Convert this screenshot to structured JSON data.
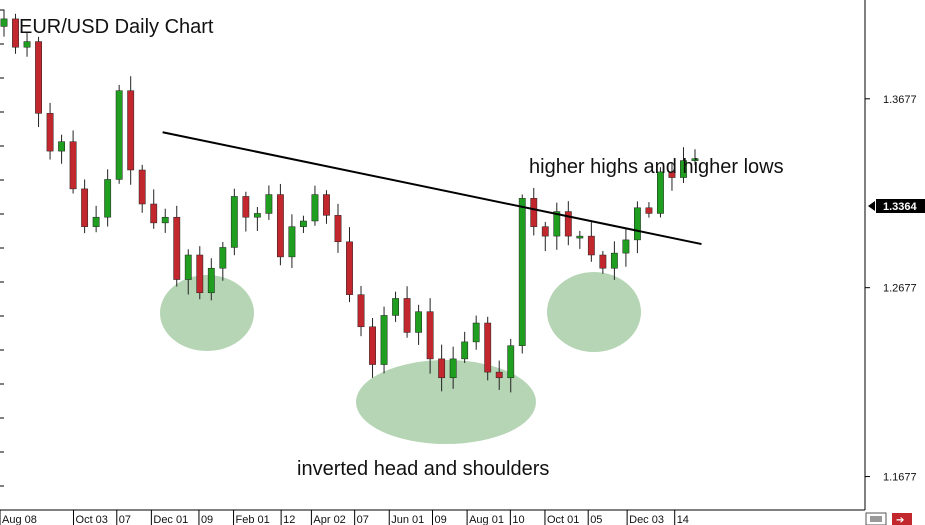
{
  "chart_data": {
    "type": "candlestick",
    "title": "EUR/USD Daily Chart",
    "ylim": [
      1.15,
      1.42
    ],
    "y_ticks": [
      "1.1677",
      "1.2677",
      "1.3677"
    ],
    "x_ticks": [
      "Aug 08",
      "Oct 03",
      "07",
      "Dec 01",
      "09",
      "Feb 01",
      "12",
      "Apr 02",
      "07",
      "Jun 01",
      "09",
      "Aug 01",
      "10",
      "Oct 01",
      "05",
      "Dec 03",
      "14"
    ],
    "current_price": "1.3364",
    "trendline": {
      "start": [
        0.188,
        1.35
      ],
      "end": [
        0.811,
        1.2908
      ]
    },
    "closes": [
      1.41,
      1.395,
      1.398,
      1.36,
      1.34,
      1.345,
      1.32,
      1.3,
      1.305,
      1.325,
      1.372,
      1.33,
      1.312,
      1.302,
      1.305,
      1.272,
      1.285,
      1.265,
      1.278,
      1.289,
      1.316,
      1.305,
      1.307,
      1.317,
      1.284,
      1.3,
      1.303,
      1.317,
      1.306,
      1.292,
      1.264,
      1.247,
      1.227,
      1.253,
      1.262,
      1.244,
      1.255,
      1.23,
      1.22,
      1.23,
      1.239,
      1.249,
      1.223,
      1.22,
      1.237,
      1.315,
      1.3,
      1.295,
      1.308,
      1.295,
      1.295,
      1.285,
      1.278,
      1.286,
      1.293,
      1.31,
      1.307,
      1.329,
      1.326,
      1.335,
      1.336
    ],
    "annotations": [
      "higher highs and higher lows",
      "inverted head and shoulders"
    ],
    "grid": false,
    "colors": {
      "up": "#1f9e1f",
      "down": "#c1272d",
      "highlight": "#9cc79c",
      "trendline": "#000000",
      "price_box": "#000000"
    }
  },
  "toolbar": {
    "icons": [
      "scroll-left-icon",
      "scroll-right-icon"
    ]
  }
}
